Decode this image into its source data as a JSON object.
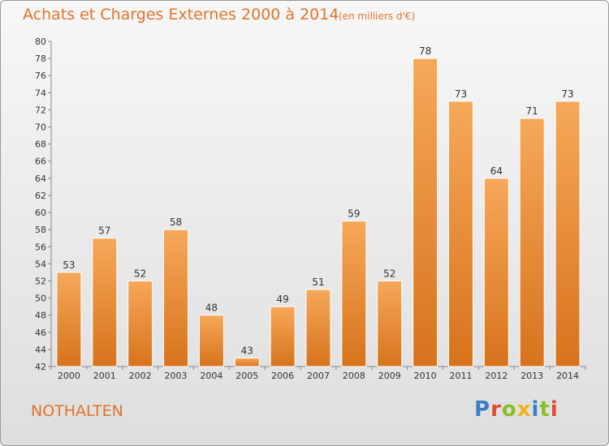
{
  "title": "Achats et Charges Externes 2000 à 2014",
  "subtitle": "(en milliers d'€)",
  "commune": "NOTHALTEN",
  "logo": {
    "text": "Proxiti",
    "colors": [
      "#3a7fc4",
      "#e04a2f",
      "#8cbf26",
      "#f2b21b",
      "#3a7fc4",
      "#8cbf26",
      "#e04a2f"
    ]
  },
  "colors": {
    "bar_light": "#f6a85a",
    "bar_dark": "#d7731c",
    "accent": "#e0742a"
  },
  "chart_data": {
    "type": "bar",
    "categories": [
      "2000",
      "2001",
      "2002",
      "2003",
      "2004",
      "2005",
      "2006",
      "2007",
      "2008",
      "2009",
      "2010",
      "2011",
      "2012",
      "2013",
      "2014"
    ],
    "values": [
      53,
      57,
      52,
      58,
      48,
      43,
      49,
      51,
      59,
      52,
      78,
      73,
      64,
      71,
      73
    ],
    "ylim": [
      42,
      80
    ],
    "yticks": [
      42,
      44,
      46,
      48,
      50,
      52,
      54,
      56,
      58,
      60,
      62,
      64,
      66,
      68,
      70,
      72,
      74,
      76,
      78,
      80
    ],
    "grid": false,
    "legend": "none"
  }
}
